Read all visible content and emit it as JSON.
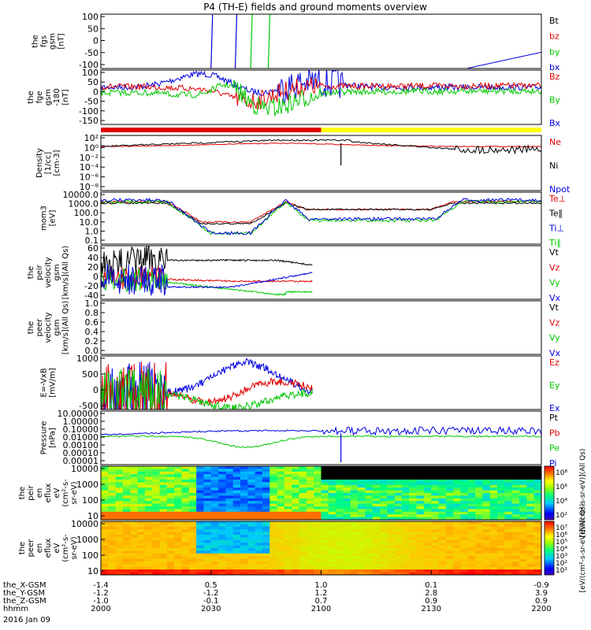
{
  "title": "P4 (TH-E) fields and ground moments overview",
  "colors": {
    "black": "#000000",
    "red": "#e00000",
    "green": "#00c800",
    "blue": "#0000e0",
    "yellow": "#ffff00"
  },
  "chart_data": [
    {
      "type": "line",
      "ylabel": [
        "the",
        "fgs",
        "gsm",
        "[nT]"
      ],
      "yticks": [
        "100",
        "50",
        "0",
        "-50",
        "-100"
      ],
      "ylim": [
        -100,
        100
      ],
      "legend": [
        {
          "name": "Bt",
          "color": "black"
        },
        {
          "name": "bz",
          "color": "red"
        },
        {
          "name": "by",
          "color": "green"
        },
        {
          "name": "bx",
          "color": "blue"
        }
      ]
    },
    {
      "type": "line",
      "ylabel": [
        "the",
        "fge",
        "gsm",
        "-180",
        "[nT]"
      ],
      "yticks": [
        "100",
        "50",
        "0",
        "-50",
        "-100",
        "-150"
      ],
      "ylim": [
        -180,
        120
      ],
      "legend": [
        {
          "name": "Bz",
          "color": "red"
        },
        {
          "name": "By",
          "color": "green"
        },
        {
          "name": "Bx",
          "color": "blue"
        }
      ]
    },
    {
      "type": "line",
      "ylabel": [
        "Density",
        "[1/cc]",
        "[cm-3]"
      ],
      "yticks": [
        "10²",
        "10⁰",
        "10⁻²",
        "10⁻⁴",
        "10⁻⁶",
        "10⁻⁸"
      ],
      "scale": "log",
      "legend": [
        {
          "name": "Ne",
          "color": "red"
        },
        {
          "name": "Ni",
          "color": "black"
        },
        {
          "name": "Npot",
          "color": "blue"
        }
      ]
    },
    {
      "type": "line",
      "ylabel": [
        "mom3",
        "[eV]"
      ],
      "yticks": [
        "10000.0",
        "1000.0",
        "100.0",
        "10.0",
        "1.0",
        "0.1"
      ],
      "scale": "log",
      "legend": [
        {
          "name": "Te⊥",
          "color": "red"
        },
        {
          "name": "Te∥",
          "color": "black"
        },
        {
          "name": "Ti⊥",
          "color": "blue"
        },
        {
          "name": "Ti∥",
          "color": "green"
        }
      ]
    },
    {
      "type": "line",
      "ylabel": [
        "the",
        "peir",
        "velocity",
        "gsm",
        "[km/s](All Qs)"
      ],
      "yticks": [
        "60",
        "40",
        "20",
        "0",
        "-20",
        "-40"
      ],
      "ylim": [
        -40,
        70
      ],
      "legend": [
        {
          "name": "Vt",
          "color": "black"
        },
        {
          "name": "Vz",
          "color": "red"
        },
        {
          "name": "Vy",
          "color": "green"
        },
        {
          "name": "Vx",
          "color": "blue"
        }
      ]
    },
    {
      "type": "line",
      "ylabel": [
        "the",
        "peer",
        "velocity",
        "gsm",
        "[km/s](All Qs)"
      ],
      "yticks": [
        "1.0",
        "0.8",
        "0.6",
        "0.4",
        "0.2",
        "0.0"
      ],
      "ylim": [
        0,
        1
      ],
      "legend": [
        {
          "name": "Vt",
          "color": "black"
        },
        {
          "name": "Vz",
          "color": "red"
        },
        {
          "name": "Vy",
          "color": "green"
        },
        {
          "name": "Vx",
          "color": "blue"
        }
      ]
    },
    {
      "type": "line",
      "ylabel": [
        "E=-VxB",
        "[mV/m]"
      ],
      "yticks": [
        "1000",
        "500",
        "0",
        "-500"
      ],
      "ylim": [
        -600,
        1300
      ],
      "legend": [
        {
          "name": "Ez",
          "color": "red"
        },
        {
          "name": "Ey",
          "color": "green"
        },
        {
          "name": "Ex",
          "color": "blue"
        }
      ]
    },
    {
      "type": "line",
      "ylabel": [
        "Pressure",
        "[nPa]"
      ],
      "yticks": [
        "10.00000",
        "1.00000",
        "0.10000",
        "0.01000",
        "0.00100",
        "0.00010",
        "0.00001"
      ],
      "scale": "log",
      "legend": [
        {
          "name": "Pt",
          "color": "black"
        },
        {
          "name": "Pb",
          "color": "red"
        },
        {
          "name": "Pe",
          "color": "green"
        },
        {
          "name": "Pi",
          "color": "blue"
        }
      ]
    },
    {
      "type": "heatmap",
      "ylabel": [
        "the",
        "peir",
        "en",
        "eflux",
        "eV",
        "(cm²-s-",
        "sr-eV)"
      ],
      "yticks": [
        "10000",
        "1000",
        "100",
        "10"
      ],
      "scale": "log",
      "colorbar": {
        "ticks": [
          "10⁸",
          "10⁶",
          "10⁴",
          "10²"
        ],
        "label": "[eV/(cm²-s-sr-eV)](All Qs)"
      }
    },
    {
      "type": "heatmap",
      "ylabel": [
        "the",
        "peer",
        "en",
        "eflux",
        "eV",
        "(cm²-s-",
        "sr-eV)"
      ],
      "yticks": [
        "10000",
        "1000",
        "100",
        "10"
      ],
      "scale": "log",
      "colorbar": {
        "ticks": [
          "10⁷",
          "10⁶",
          "10⁵",
          "10⁴",
          "10³",
          "10²",
          "10¹"
        ],
        "label": "[eV/(cm²-s-sr-eV)](All Qs)"
      }
    }
  ],
  "xaxis": {
    "rows": [
      {
        "label": "the_X-GSM",
        "values": [
          "-1.4",
          "0.5",
          "1.0",
          "0.1",
          "-0.9"
        ]
      },
      {
        "label": "the_Y-GSM",
        "values": [
          "-1.2",
          "-1.2",
          "1.2",
          "2.8",
          "3.9"
        ]
      },
      {
        "label": "the_Z-GSM",
        "values": [
          "-1.0",
          "-0.1",
          "0.7",
          "0.9",
          "0.9"
        ]
      },
      {
        "label": "hhmm",
        "values": [
          "2000",
          "2030",
          "2100",
          "2130",
          "2200"
        ]
      }
    ],
    "date": "2016 Jan 09"
  }
}
